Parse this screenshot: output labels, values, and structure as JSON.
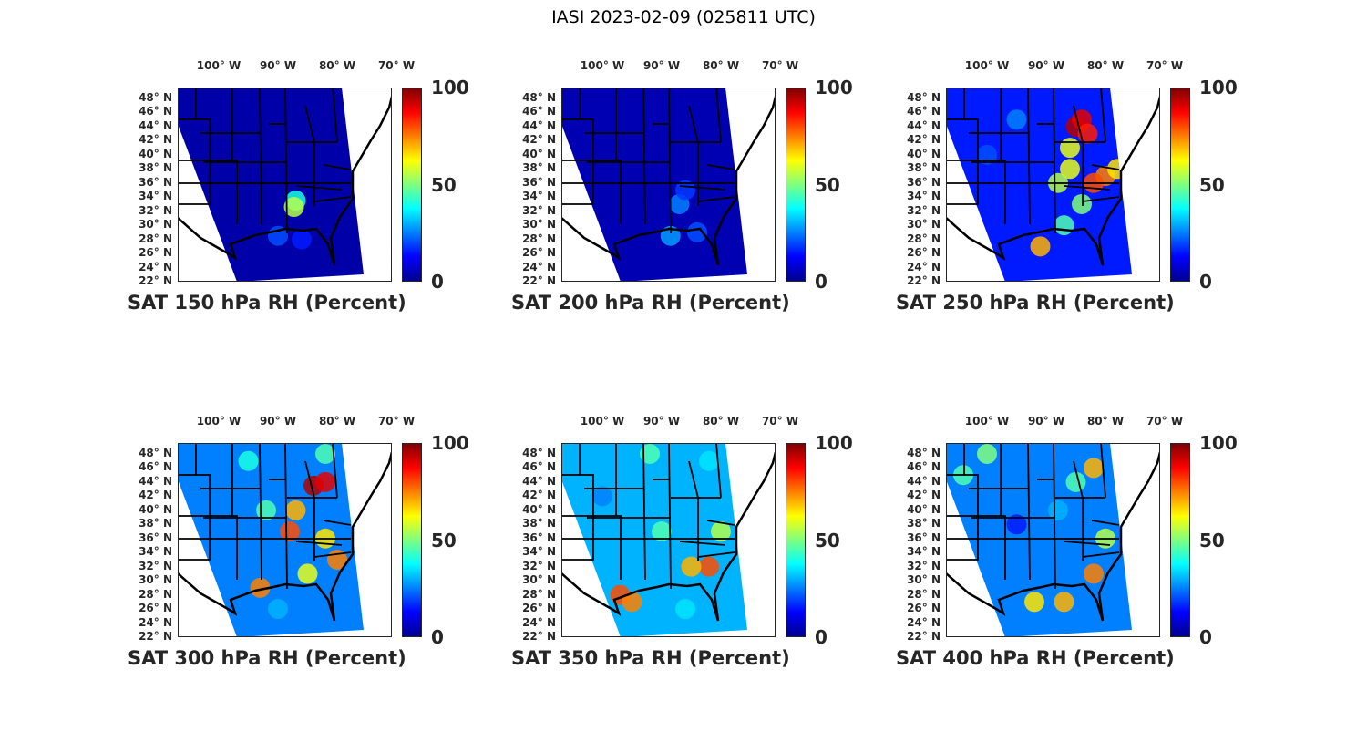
{
  "title": "IASI 2023-02-09 (025811 UTC)",
  "chart_data": {
    "type": "heatmap",
    "title": "IASI 2023-02-09 (025811 UTC)",
    "lon_ticks": [
      "100° W",
      "90° W",
      "80° W",
      "70° W"
    ],
    "lon_values": [
      -100,
      -90,
      -80,
      -70
    ],
    "lat_ticks": [
      "48° N",
      "46° N",
      "44° N",
      "42° N",
      "40° N",
      "38° N",
      "36° N",
      "34° N",
      "32° N",
      "30° N",
      "28° N",
      "26° N",
      "24° N",
      "22° N"
    ],
    "lat_values": [
      48,
      46,
      44,
      42,
      40,
      38,
      36,
      34,
      32,
      30,
      28,
      26,
      24,
      22
    ],
    "colorbar": {
      "range": [
        0,
        100
      ],
      "ticks": [
        "100",
        "50",
        "0"
      ],
      "tick_values": [
        100,
        50,
        0
      ],
      "colormap": "jet"
    },
    "panels": [
      {
        "title": "SAT 150 hPa RH (Percent)",
        "background_rh": 4,
        "points": [
          [
            -87,
            33.5,
            40
          ],
          [
            -87.3,
            32.6,
            55
          ],
          [
            -90,
            28.5,
            20
          ],
          [
            -86,
            28,
            15
          ]
        ]
      },
      {
        "title": "SAT 200 hPa RH (Percent)",
        "background_rh": 5,
        "points": [
          [
            -87,
            33,
            25
          ],
          [
            -88.5,
            28.5,
            28
          ],
          [
            -84,
            29,
            20
          ],
          [
            -86,
            35,
            18
          ]
        ]
      },
      {
        "title": "SAT 250 hPa RH (Percent)",
        "background_rh": 15,
        "points": [
          [
            -85,
            44,
            95
          ],
          [
            -84,
            45,
            90
          ],
          [
            -83,
            43,
            85
          ],
          [
            -86,
            41,
            60
          ],
          [
            -86,
            38,
            60
          ],
          [
            -80,
            37,
            75
          ],
          [
            -82,
            36,
            80
          ],
          [
            -78,
            38,
            65
          ],
          [
            -88,
            36,
            55
          ],
          [
            -84,
            33,
            50
          ],
          [
            -91,
            27,
            70
          ],
          [
            -87,
            30,
            45
          ],
          [
            -95,
            45,
            25
          ],
          [
            -100,
            40,
            20
          ]
        ]
      },
      {
        "title": "SAT 300 hPa RH (Percent)",
        "background_rh": 25,
        "points": [
          [
            -84,
            43.5,
            95
          ],
          [
            -82,
            44,
            90
          ],
          [
            -87,
            40,
            70
          ],
          [
            -88,
            37,
            80
          ],
          [
            -82,
            36,
            65
          ],
          [
            -80,
            33,
            75
          ],
          [
            -85,
            31,
            60
          ],
          [
            -95,
            47,
            40
          ],
          [
            -82,
            48,
            45
          ],
          [
            -90,
            26,
            30
          ],
          [
            -93,
            29,
            75
          ],
          [
            -92,
            40,
            45
          ]
        ]
      },
      {
        "title": "SAT 350 hPa RH (Percent)",
        "background_rh": 30,
        "points": [
          [
            -97,
            28,
            80
          ],
          [
            -95,
            27,
            75
          ],
          [
            -82,
            32,
            80
          ],
          [
            -85,
            32,
            70
          ],
          [
            -80,
            37,
            55
          ],
          [
            -90,
            37,
            45
          ],
          [
            -92,
            48,
            45
          ],
          [
            -86,
            26,
            35
          ],
          [
            -82,
            47,
            35
          ],
          [
            -100,
            42,
            25
          ]
        ]
      },
      {
        "title": "SAT 400 hPa RH (Percent)",
        "background_rh": 25,
        "points": [
          [
            -92,
            27,
            65
          ],
          [
            -87,
            27,
            70
          ],
          [
            -82,
            31,
            75
          ],
          [
            -80,
            36,
            55
          ],
          [
            -85,
            44,
            45
          ],
          [
            -82,
            46,
            70
          ],
          [
            -104,
            45,
            45
          ],
          [
            -100,
            48,
            50
          ],
          [
            -95,
            38,
            15
          ],
          [
            -88,
            40,
            30
          ]
        ]
      }
    ]
  }
}
